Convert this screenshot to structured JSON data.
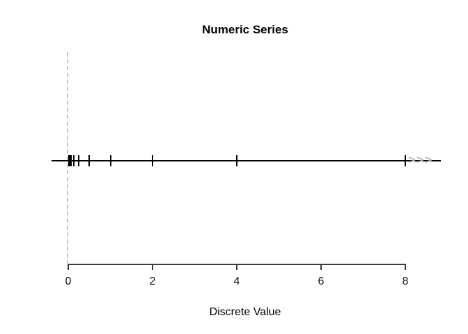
{
  "chart_data": {
    "type": "rug",
    "title": "Numeric Series",
    "xlabel": "Discrete Value",
    "values": [
      0.015625,
      0.03125,
      0.0625,
      0.125,
      0.25,
      0.5,
      1,
      2,
      4,
      8
    ],
    "x_ticks": [
      0,
      2,
      4,
      6,
      8
    ],
    "x_tick_labels": [
      "0",
      "2",
      "4",
      "6",
      "8"
    ],
    "xlim": [
      0,
      8
    ],
    "grid": false,
    "legend": null,
    "line_color": "#000000",
    "data_tick_color": "#000000",
    "axis_color": "#3c3c3c",
    "annotations": {
      "zero_reference_line": {
        "x": 0,
        "style": "dashed",
        "color": "#c6c6c6"
      },
      "continuation_arrows": {
        "glyph": ">>>",
        "after_value": 8,
        "color": "#b3b3b3"
      }
    }
  }
}
